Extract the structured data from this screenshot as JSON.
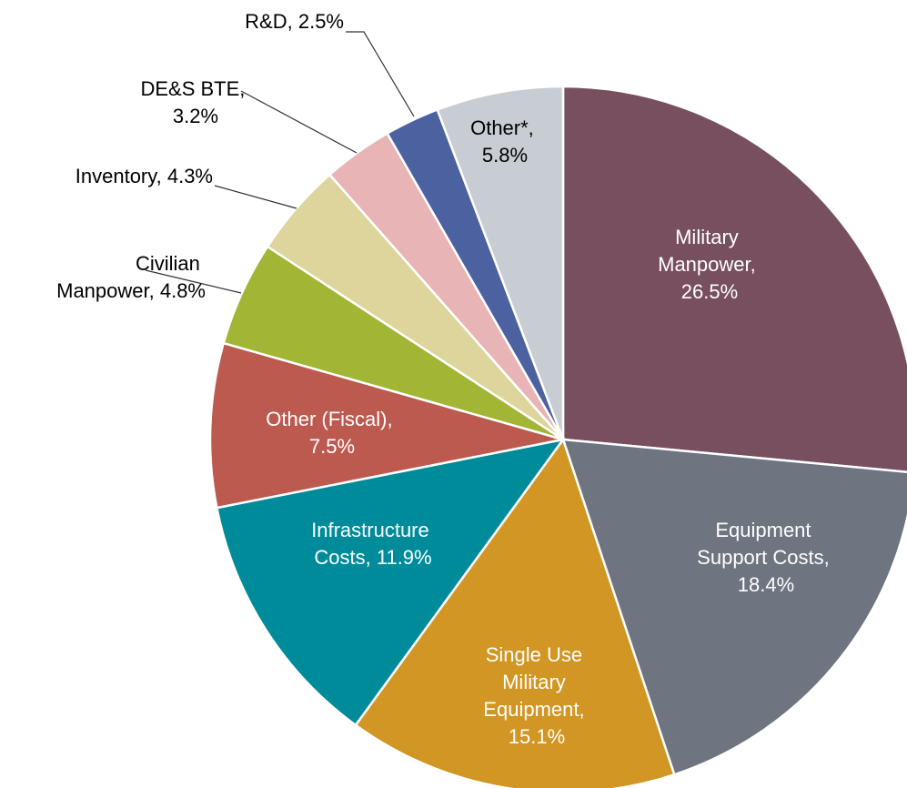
{
  "chart_data": {
    "type": "pie",
    "categories": [
      "Military Manpower",
      "Equipment Support Costs",
      "Single Use Military Equipment",
      "Infrastructure Costs",
      "Other (Fiscal)",
      "Civilian Manpower",
      "Inventory",
      "DE&S BTE",
      "R&D",
      "Other*"
    ],
    "values": [
      26.5,
      18.4,
      15.1,
      11.9,
      7.5,
      4.8,
      4.3,
      3.2,
      2.5,
      5.8
    ],
    "value_labels": [
      "Military Manpower, 26.5%",
      "Equipment Support Costs, 18.4%",
      "Single Use Military Equipment, 15.1%",
      "Infrastructure Costs, 11.9%",
      "Other (Fiscal), 7.5%",
      "Civilian Manpower, 4.8%",
      "Inventory, 4.3%",
      "DE&S BTE, 3.2%",
      "R&D, 2.5%",
      "Other*, 5.8%"
    ],
    "colors": [
      "#774f5e",
      "#6e7480",
      "#d19623",
      "#008b9a",
      "#bd5a50",
      "#a3b535",
      "#ddd59b",
      "#e8b4b6",
      "#4c62a0",
      "#c8ccd3"
    ]
  }
}
